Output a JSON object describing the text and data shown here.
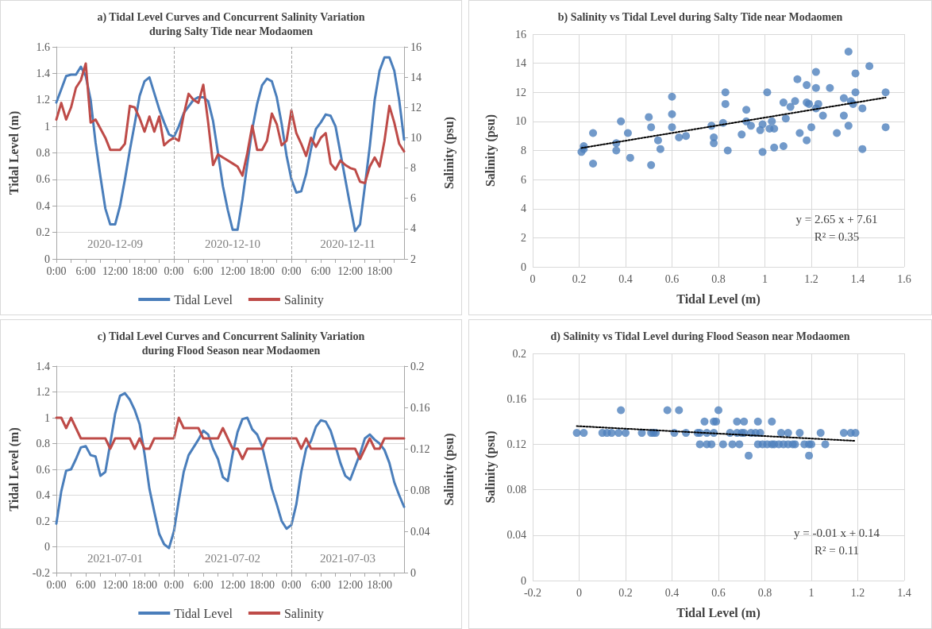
{
  "chart_data": [
    {
      "type": "line",
      "title": "a) Tidal Level Curves and Concurrent Salinity Variation\nduring Salty Tide near Modaomen",
      "ylabel": "Tidal Level (m)",
      "y2label": "Salinity (psu)",
      "x": [
        "2020-12-09T00:00",
        "2020-12-09T01:00",
        "2020-12-09T02:00",
        "2020-12-09T03:00",
        "2020-12-09T04:00",
        "2020-12-09T05:00",
        "2020-12-09T06:00",
        "2020-12-09T07:00",
        "2020-12-09T08:00",
        "2020-12-09T09:00",
        "2020-12-09T10:00",
        "2020-12-09T11:00",
        "2020-12-09T12:00",
        "2020-12-09T13:00",
        "2020-12-09T14:00",
        "2020-12-09T15:00",
        "2020-12-09T16:00",
        "2020-12-09T17:00",
        "2020-12-09T18:00",
        "2020-12-09T19:00",
        "2020-12-09T20:00",
        "2020-12-09T21:00",
        "2020-12-09T22:00",
        "2020-12-09T23:00",
        "2020-12-10T00:00",
        "2020-12-10T01:00",
        "2020-12-10T02:00",
        "2020-12-10T03:00",
        "2020-12-10T04:00",
        "2020-12-10T05:00",
        "2020-12-10T06:00",
        "2020-12-10T07:00",
        "2020-12-10T08:00",
        "2020-12-10T09:00",
        "2020-12-10T10:00",
        "2020-12-10T11:00",
        "2020-12-10T12:00",
        "2020-12-10T13:00",
        "2020-12-10T14:00",
        "2020-12-10T15:00",
        "2020-12-10T16:00",
        "2020-12-10T17:00",
        "2020-12-10T18:00",
        "2020-12-10T19:00",
        "2020-12-10T20:00",
        "2020-12-10T21:00",
        "2020-12-10T22:00",
        "2020-12-10T23:00",
        "2020-12-11T00:00",
        "2020-12-11T01:00",
        "2020-12-11T02:00",
        "2020-12-11T03:00",
        "2020-12-11T04:00",
        "2020-12-11T05:00",
        "2020-12-11T06:00",
        "2020-12-11T07:00",
        "2020-12-11T08:00",
        "2020-12-11T09:00",
        "2020-12-11T10:00",
        "2020-12-11T11:00",
        "2020-12-11T12:00",
        "2020-12-11T13:00",
        "2020-12-11T14:00",
        "2020-12-11T15:00",
        "2020-12-11T16:00",
        "2020-12-11T17:00",
        "2020-12-11T18:00",
        "2020-12-11T19:00",
        "2020-12-11T20:00",
        "2020-12-11T21:00",
        "2020-12-11T22:00",
        "2020-12-11T23:00"
      ],
      "xlim": [
        "2020-12-09T00:00",
        "2020-12-11T23:00"
      ],
      "xticks": [
        {
          "value": "2020-12-09T00:00",
          "label": "0:00"
        },
        {
          "value": "2020-12-09T03:00",
          "label": null
        },
        {
          "value": "2020-12-09T06:00",
          "label": "6:00"
        },
        {
          "value": "2020-12-09T09:00",
          "label": null
        },
        {
          "value": "2020-12-09T12:00",
          "label": "12:00"
        },
        {
          "value": "2020-12-09T15:00",
          "label": null
        },
        {
          "value": "2020-12-09T18:00",
          "label": "18:00"
        },
        {
          "value": "2020-12-09T21:00",
          "label": null
        },
        {
          "value": "2020-12-10T00:00",
          "label": "0:00"
        },
        {
          "value": "2020-12-10T03:00",
          "label": null
        },
        {
          "value": "2020-12-10T06:00",
          "label": "6:00"
        },
        {
          "value": "2020-12-10T09:00",
          "label": null
        },
        {
          "value": "2020-12-10T12:00",
          "label": "12:00"
        },
        {
          "value": "2020-12-10T15:00",
          "label": null
        },
        {
          "value": "2020-12-10T18:00",
          "label": "18:00"
        },
        {
          "value": "2020-12-10T21:00",
          "label": null
        },
        {
          "value": "2020-12-11T00:00",
          "label": "0:00"
        },
        {
          "value": "2020-12-11T03:00",
          "label": null
        },
        {
          "value": "2020-12-11T06:00",
          "label": "6:00"
        },
        {
          "value": "2020-12-11T09:00",
          "label": null
        },
        {
          "value": "2020-12-11T12:00",
          "label": "12:00"
        },
        {
          "value": "2020-12-11T15:00",
          "label": null
        },
        {
          "value": "2020-12-11T18:00",
          "label": "18:00"
        },
        {
          "value": "2020-12-11T21:00",
          "label": null
        }
      ],
      "ylim": [
        0,
        1.6
      ],
      "yticks": [
        0,
        0.2,
        0.4,
        0.6,
        0.8,
        1,
        1.2,
        1.4,
        1.6
      ],
      "y2lim": [
        2,
        16
      ],
      "y2ticks": [
        2,
        4,
        6,
        8,
        10,
        12,
        14,
        16
      ],
      "series": [
        {
          "name": "Tidal Level",
          "color": "#4a7ebb",
          "values": [
            1.18,
            1.28,
            1.38,
            1.39,
            1.39,
            1.45,
            1.38,
            1.2,
            0.88,
            0.62,
            0.38,
            0.26,
            0.26,
            0.4,
            0.6,
            0.82,
            1.02,
            1.23,
            1.34,
            1.37,
            1.25,
            1.13,
            1.03,
            0.94,
            0.92,
            1.0,
            1.1,
            1.15,
            1.2,
            1.22,
            1.22,
            1.19,
            1.04,
            0.8,
            0.55,
            0.37,
            0.22,
            0.22,
            0.45,
            0.72,
            0.98,
            1.17,
            1.31,
            1.36,
            1.34,
            1.22,
            1.02,
            0.78,
            0.6,
            0.5,
            0.51,
            0.64,
            0.83,
            0.98,
            1.03,
            1.09,
            1.08,
            1.0,
            0.8,
            0.6,
            0.4,
            0.21,
            0.26,
            0.55,
            0.85,
            1.2,
            1.42,
            1.52,
            1.52,
            1.42,
            1.2,
            0.9
          ]
        },
        {
          "name": "Salinity",
          "color": "#be4b48",
          "axis": "y2",
          "values": [
            11.2,
            12.3,
            11.2,
            12.0,
            13.3,
            13.8,
            14.9,
            11.0,
            11.2,
            10.6,
            10.0,
            9.2,
            9.2,
            9.2,
            9.6,
            12.1,
            12.0,
            11.3,
            10.4,
            11.4,
            10.4,
            11.4,
            9.5,
            9.8,
            10.0,
            9.8,
            11.5,
            12.9,
            12.5,
            12.3,
            13.5,
            11.0,
            8.2,
            8.9,
            8.7,
            8.5,
            8.3,
            8.1,
            7.5,
            9.0,
            10.8,
            9.2,
            9.2,
            9.8,
            11.6,
            10.9,
            9.5,
            9.8,
            11.8,
            10.3,
            9.6,
            8.8,
            10.0,
            9.4,
            10.0,
            10.3,
            8.3,
            7.9,
            8.5,
            8.2,
            8.0,
            7.9,
            7.1,
            7.0,
            8.1,
            8.7,
            8.1,
            9.8,
            12.1,
            11.0,
            9.6,
            9.1
          ]
        }
      ],
      "ref_lines": [
        {
          "axis": "x",
          "value": "2020-12-10T00:00",
          "line_style": "dashed",
          "color": "#a6a6a6"
        },
        {
          "axis": "x",
          "value": "2020-12-11T00:00",
          "line_style": "dashed",
          "color": "#a6a6a6"
        }
      ],
      "annotations": [
        "2020-12-09",
        "2020-12-10",
        "2020-12-11"
      ],
      "grid": "y",
      "legend": "bottom",
      "marker": "none"
    },
    {
      "type": "scatter",
      "title": "b) Salinity vs Tidal Level during Salty Tide near Modaomen",
      "xlabel": "Tidal Level (m)",
      "ylabel": "Salinity (psu)",
      "xlim": [
        0,
        1.6
      ],
      "xticks": [
        0,
        0.2,
        0.4,
        0.6,
        0.8,
        1,
        1.2,
        1.4,
        1.6
      ],
      "ylim": [
        0,
        16
      ],
      "yticks": [
        0,
        2,
        4,
        6,
        8,
        10,
        12,
        14,
        16
      ],
      "series": [
        {
          "color": "#4f81bd",
          "x": [
            0.21,
            0.22,
            0.22,
            0.26,
            0.26,
            0.36,
            0.36,
            0.38,
            0.41,
            0.42,
            0.5,
            0.51,
            0.51,
            0.54,
            0.55,
            0.6,
            0.6,
            0.6,
            0.63,
            0.66,
            0.77,
            0.78,
            0.78,
            0.82,
            0.83,
            0.83,
            0.84,
            0.9,
            0.92,
            0.92,
            0.94,
            0.98,
            0.99,
            0.99,
            1.01,
            1.02,
            1.03,
            1.04,
            1.04,
            1.08,
            1.08,
            1.09,
            1.11,
            1.13,
            1.14,
            1.15,
            1.18,
            1.18,
            1.18,
            1.19,
            1.2,
            1.22,
            1.22,
            1.22,
            1.23,
            1.25,
            1.28,
            1.31,
            1.34,
            1.34,
            1.36,
            1.36,
            1.37,
            1.38,
            1.39,
            1.39,
            1.42,
            1.42,
            1.45,
            1.52,
            1.52
          ],
          "values": [
            7.9,
            8.3,
            8.1,
            9.2,
            7.1,
            8.5,
            8.0,
            10.0,
            9.2,
            7.5,
            10.3,
            9.6,
            7.0,
            8.7,
            8.1,
            11.7,
            10.5,
            9.6,
            8.9,
            9.0,
            9.7,
            8.9,
            8.5,
            9.9,
            12.0,
            11.2,
            8.0,
            9.1,
            10.8,
            10.0,
            9.7,
            9.4,
            9.8,
            7.9,
            12.0,
            9.5,
            10.0,
            9.5,
            8.2,
            11.3,
            8.3,
            10.2,
            11.0,
            11.4,
            12.9,
            9.2,
            12.5,
            11.3,
            8.7,
            11.2,
            9.6,
            13.4,
            12.3,
            10.9,
            11.2,
            10.4,
            12.3,
            9.2,
            11.6,
            10.4,
            14.8,
            9.7,
            11.4,
            11.2,
            13.3,
            12.0,
            10.9,
            8.1,
            13.8,
            12.0,
            9.6
          ]
        },
        {
          "type": "line",
          "color": "#000000",
          "line_style": "dotted",
          "marker": "none",
          "x": [
            0.21,
            1.52
          ],
          "values": [
            8.17,
            11.64
          ]
        }
      ],
      "annotations": [
        "y = 2.65 x + 7.61",
        "R² = 0.35"
      ],
      "grid": true,
      "marker": "circle"
    },
    {
      "type": "line",
      "title": "c) Tidal Level Curves and Concurrent Salinity Variation\nduring Flood Season near Modaomen",
      "ylabel": "Tidal Level (m)",
      "y2label": "Salinity (psu)",
      "x": [
        "2021-07-01T00:00",
        "2021-07-01T01:00",
        "2021-07-01T02:00",
        "2021-07-01T03:00",
        "2021-07-01T04:00",
        "2021-07-01T05:00",
        "2021-07-01T06:00",
        "2021-07-01T07:00",
        "2021-07-01T08:00",
        "2021-07-01T09:00",
        "2021-07-01T10:00",
        "2021-07-01T11:00",
        "2021-07-01T12:00",
        "2021-07-01T13:00",
        "2021-07-01T14:00",
        "2021-07-01T15:00",
        "2021-07-01T16:00",
        "2021-07-01T17:00",
        "2021-07-01T18:00",
        "2021-07-01T19:00",
        "2021-07-01T20:00",
        "2021-07-01T21:00",
        "2021-07-01T22:00",
        "2021-07-01T23:00",
        "2021-07-02T00:00",
        "2021-07-02T01:00",
        "2021-07-02T02:00",
        "2021-07-02T03:00",
        "2021-07-02T04:00",
        "2021-07-02T05:00",
        "2021-07-02T06:00",
        "2021-07-02T07:00",
        "2021-07-02T08:00",
        "2021-07-02T09:00",
        "2021-07-02T10:00",
        "2021-07-02T11:00",
        "2021-07-02T12:00",
        "2021-07-02T13:00",
        "2021-07-02T14:00",
        "2021-07-02T15:00",
        "2021-07-02T16:00",
        "2021-07-02T17:00",
        "2021-07-02T18:00",
        "2021-07-02T19:00",
        "2021-07-02T20:00",
        "2021-07-02T21:00",
        "2021-07-02T22:00",
        "2021-07-02T23:00",
        "2021-07-03T00:00",
        "2021-07-03T01:00",
        "2021-07-03T02:00",
        "2021-07-03T03:00",
        "2021-07-03T04:00",
        "2021-07-03T05:00",
        "2021-07-03T06:00",
        "2021-07-03T07:00",
        "2021-07-03T08:00",
        "2021-07-03T09:00",
        "2021-07-03T10:00",
        "2021-07-03T11:00",
        "2021-07-03T12:00",
        "2021-07-03T13:00",
        "2021-07-03T14:00",
        "2021-07-03T15:00",
        "2021-07-03T16:00",
        "2021-07-03T17:00",
        "2021-07-03T18:00",
        "2021-07-03T19:00",
        "2021-07-03T20:00",
        "2021-07-03T21:00",
        "2021-07-03T22:00",
        "2021-07-03T23:00"
      ],
      "xlim": [
        "2021-07-01T00:00",
        "2021-07-03T23:00"
      ],
      "xticks": [
        {
          "value": "2021-07-01T00:00",
          "label": "0:00"
        },
        {
          "value": "2021-07-01T03:00",
          "label": null
        },
        {
          "value": "2021-07-01T06:00",
          "label": "6:00"
        },
        {
          "value": "2021-07-01T09:00",
          "label": null
        },
        {
          "value": "2021-07-01T12:00",
          "label": "12:00"
        },
        {
          "value": "2021-07-01T15:00",
          "label": null
        },
        {
          "value": "2021-07-01T18:00",
          "label": "18:00"
        },
        {
          "value": "2021-07-01T21:00",
          "label": null
        },
        {
          "value": "2021-07-02T00:00",
          "label": "0:00"
        },
        {
          "value": "2021-07-02T03:00",
          "label": null
        },
        {
          "value": "2021-07-02T06:00",
          "label": "6:00"
        },
        {
          "value": "2021-07-02T09:00",
          "label": null
        },
        {
          "value": "2021-07-02T12:00",
          "label": "12:00"
        },
        {
          "value": "2021-07-02T15:00",
          "label": null
        },
        {
          "value": "2021-07-02T18:00",
          "label": "18:00"
        },
        {
          "value": "2021-07-02T21:00",
          "label": null
        },
        {
          "value": "2021-07-03T00:00",
          "label": "0:00"
        },
        {
          "value": "2021-07-03T03:00",
          "label": null
        },
        {
          "value": "2021-07-03T06:00",
          "label": "6:00"
        },
        {
          "value": "2021-07-03T09:00",
          "label": null
        },
        {
          "value": "2021-07-03T12:00",
          "label": "12:00"
        },
        {
          "value": "2021-07-03T15:00",
          "label": null
        },
        {
          "value": "2021-07-03T18:00",
          "label": "18:00"
        },
        {
          "value": "2021-07-03T21:00",
          "label": null
        }
      ],
      "ylim": [
        -0.2,
        1.4
      ],
      "yticks": [
        -0.2,
        0,
        0.2,
        0.4,
        0.6,
        0.8,
        1,
        1.2,
        1.4
      ],
      "y2lim": [
        0,
        0.2
      ],
      "y2ticks": [
        0,
        0.04,
        0.08,
        0.12,
        0.16,
        0.2
      ],
      "series": [
        {
          "name": "Tidal Level",
          "color": "#4a7ebb",
          "values": [
            0.18,
            0.43,
            0.59,
            0.6,
            0.68,
            0.77,
            0.78,
            0.71,
            0.7,
            0.55,
            0.58,
            0.8,
            1.03,
            1.17,
            1.19,
            1.14,
            1.06,
            0.95,
            0.72,
            0.45,
            0.27,
            0.1,
            0.02,
            -0.01,
            0.12,
            0.36,
            0.58,
            0.71,
            0.77,
            0.83,
            0.9,
            0.87,
            0.76,
            0.68,
            0.54,
            0.51,
            0.72,
            0.89,
            0.99,
            1.0,
            0.91,
            0.87,
            0.78,
            0.62,
            0.45,
            0.33,
            0.2,
            0.14,
            0.17,
            0.33,
            0.58,
            0.76,
            0.82,
            0.93,
            0.98,
            0.97,
            0.9,
            0.78,
            0.65,
            0.55,
            0.52,
            0.62,
            0.72,
            0.84,
            0.87,
            0.83,
            0.8,
            0.75,
            0.65,
            0.5,
            0.4,
            0.31
          ]
        },
        {
          "name": "Salinity",
          "color": "#be4b48",
          "axis": "y2",
          "values": [
            0.15,
            0.15,
            0.14,
            0.15,
            0.14,
            0.13,
            0.13,
            0.13,
            0.13,
            0.13,
            0.13,
            0.12,
            0.13,
            0.13,
            0.13,
            0.13,
            0.12,
            0.13,
            0.12,
            0.12,
            0.13,
            0.13,
            0.13,
            0.13,
            0.13,
            0.15,
            0.14,
            0.14,
            0.14,
            0.14,
            0.13,
            0.13,
            0.13,
            0.13,
            0.14,
            0.13,
            0.12,
            0.12,
            0.11,
            0.12,
            0.12,
            0.12,
            0.12,
            0.13,
            0.13,
            0.13,
            0.13,
            0.13,
            0.13,
            0.13,
            0.12,
            0.13,
            0.12,
            0.12,
            0.12,
            0.12,
            0.12,
            0.12,
            0.12,
            0.12,
            0.12,
            0.12,
            0.11,
            0.12,
            0.13,
            0.12,
            0.12,
            0.13,
            0.13,
            0.13,
            0.13,
            0.13
          ]
        }
      ],
      "ref_lines": [
        {
          "axis": "x",
          "value": "2021-07-02T00:00",
          "line_style": "dashed",
          "color": "#a6a6a6"
        },
        {
          "axis": "x",
          "value": "2021-07-03T00:00",
          "line_style": "dashed",
          "color": "#a6a6a6"
        }
      ],
      "annotations": [
        "2021-07-01",
        "2021-07-02",
        "2021-07-03"
      ],
      "grid": "y",
      "legend": "bottom",
      "marker": "none"
    },
    {
      "type": "scatter",
      "title": "d) Salinity vs Tidal Level during Flood Season near Modaomen",
      "xlabel": "Tidal Level (m)",
      "ylabel": "Salinity (psu)",
      "xlim": [
        -0.2,
        1.4
      ],
      "xticks": [
        -0.2,
        0,
        0.2,
        0.4,
        0.6,
        0.8,
        1,
        1.2,
        1.4
      ],
      "ylim": [
        0,
        0.2
      ],
      "yticks": [
        0,
        0.04,
        0.08,
        0.12,
        0.16,
        0.2
      ],
      "series": [
        {
          "color": "#4f81bd",
          "x": [
            -0.01,
            0.02,
            0.1,
            0.12,
            0.14,
            0.17,
            0.2,
            0.27,
            0.31,
            0.32,
            0.33,
            0.41,
            0.46,
            0.51,
            0.52,
            0.55,
            0.58,
            0.65,
            0.68,
            0.7,
            0.71,
            0.74,
            0.76,
            0.78,
            0.87,
            0.9,
            0.95,
            1.04,
            1.14,
            1.17,
            1.19,
            0.18,
            0.38,
            0.43,
            0.6,
            0.54,
            0.58,
            0.59,
            0.68,
            0.71,
            0.77,
            0.83,
            0.52,
            0.55,
            0.57,
            0.62,
            0.66,
            0.69,
            0.77,
            0.79,
            0.81,
            0.83,
            0.84,
            0.86,
            0.88,
            0.9,
            0.92,
            0.93,
            0.97,
            0.99,
            1.0,
            1.06,
            0.73,
            0.99
          ],
          "values": [
            0.13,
            0.13,
            0.13,
            0.13,
            0.13,
            0.13,
            0.13,
            0.13,
            0.13,
            0.13,
            0.13,
            0.13,
            0.13,
            0.13,
            0.13,
            0.13,
            0.13,
            0.13,
            0.13,
            0.13,
            0.13,
            0.13,
            0.13,
            0.13,
            0.13,
            0.13,
            0.13,
            0.13,
            0.13,
            0.13,
            0.13,
            0.15,
            0.15,
            0.15,
            0.15,
            0.14,
            0.14,
            0.14,
            0.14,
            0.14,
            0.14,
            0.14,
            0.12,
            0.12,
            0.12,
            0.12,
            0.12,
            0.12,
            0.12,
            0.12,
            0.12,
            0.12,
            0.12,
            0.12,
            0.12,
            0.12,
            0.12,
            0.12,
            0.12,
            0.12,
            0.12,
            0.12,
            0.11,
            0.11
          ]
        },
        {
          "type": "line",
          "color": "#000000",
          "line_style": "dotted",
          "marker": "none",
          "x": [
            -0.01,
            1.19
          ],
          "values": [
            0.136,
            0.123
          ]
        }
      ],
      "annotations": [
        "y = -0.01 x + 0.14",
        "R² = 0.11"
      ],
      "grid": true,
      "marker": "circle"
    }
  ]
}
